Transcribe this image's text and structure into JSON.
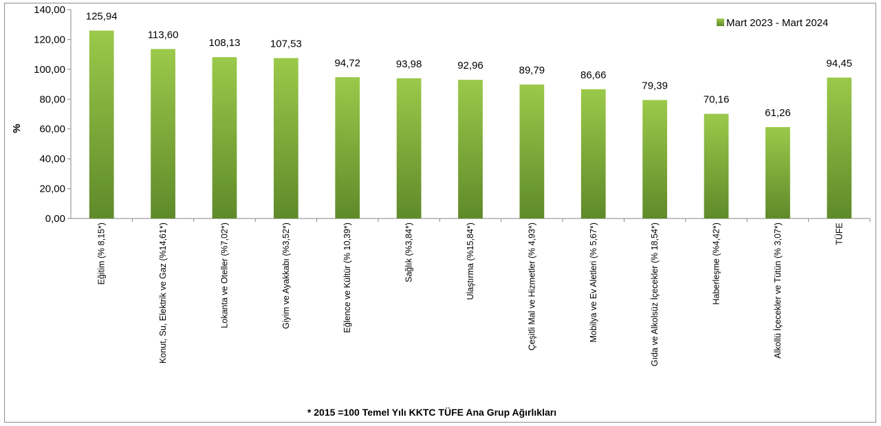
{
  "chart_data": {
    "type": "bar",
    "categories": [
      "Eğitim (% 8,15*)",
      "Konut, Su, Elektrik ve Gaz (%14,61*)",
      "Lokanta ve Oteller (%7,02*)",
      "Giyim ve Ayakkabı (%3,52*)",
      "Eğlence ve Kültür (% 10,39*)",
      "Sağlık (%3,84*)",
      "Ulaştırma (%15,84*)",
      "Çeşitli Mal ve Hizmetler (% 4,93*)",
      "Mobilya ve Ev Aletleri (% 5,67*)",
      "Gıda ve Alkolsüz İçecekler (% 18,54*)",
      "Haberleşme (%4,42*)",
      "Alkollü İçecekler ve Tütün (% 3,07*)",
      "TÜFE"
    ],
    "series": [
      {
        "name": "Mart 2023 - Mart 2024",
        "values": [
          125.94,
          113.6,
          108.13,
          107.53,
          94.72,
          93.98,
          92.96,
          89.79,
          86.66,
          79.39,
          70.16,
          61.26,
          94.45
        ]
      }
    ],
    "data_labels": [
      "125,94",
      "113,60",
      "108,13",
      "107,53",
      "94,72",
      "93,98",
      "92,96",
      "89,79",
      "86,66",
      "79,39",
      "70,16",
      "61,26",
      "94,45"
    ],
    "ylabel": "%",
    "xlabel": "*  2015 =100 Temel Yılı KKTC TÜFE Ana Grup Ağırlıkları",
    "ylim": [
      0,
      140
    ],
    "yticks": [
      0,
      20,
      40,
      60,
      80,
      100,
      120,
      140
    ],
    "ytick_labels": [
      "0,00",
      "20,00",
      "40,00",
      "60,00",
      "80,00",
      "100,00",
      "120,00",
      "140,00"
    ],
    "grid": false,
    "legend_position": "top-right",
    "colors": {
      "bar_top": "#9bc94a",
      "bar_bottom": "#5f8a2a",
      "axis": "#868686"
    }
  }
}
